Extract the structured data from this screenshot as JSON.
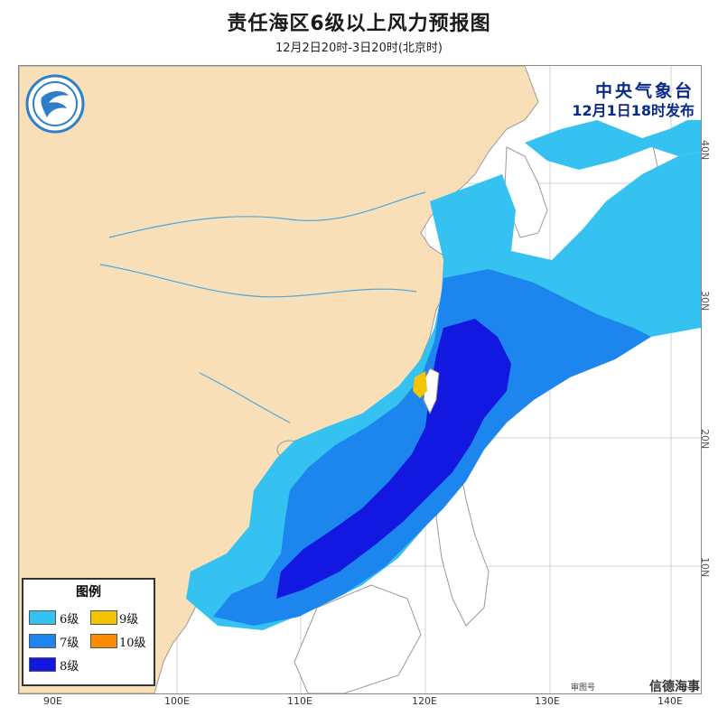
{
  "title": "责任海区6级以上风力预报图",
  "subtitle": "12月2日20时-3日20时(北京时)",
  "issuer": {
    "org": "中央气象台",
    "issued": "12月1日18时发布"
  },
  "logo": {
    "icon": "cma-logo-icon"
  },
  "legend": {
    "title": "图例",
    "items": [
      {
        "label": "6级",
        "color": "#35c2f0"
      },
      {
        "label": "9级",
        "color": "#f5c400"
      },
      {
        "label": "7级",
        "color": "#1c86ee"
      },
      {
        "label": "10级",
        "color": "#ff8c00"
      },
      {
        "label": "8级",
        "color": "#1218e0"
      }
    ]
  },
  "axes": {
    "x": [
      "90E",
      "100E",
      "110E",
      "120E",
      "130E",
      "140E"
    ],
    "y": [
      "40N",
      "30N",
      "20N",
      "10N"
    ]
  },
  "review_mark": "审图号",
  "watermark": "信德海事",
  "colors": {
    "land": "#f8dfb8",
    "sea": "#ffffff",
    "river": "#4aa8e0",
    "border": "#9a9a9a"
  }
}
